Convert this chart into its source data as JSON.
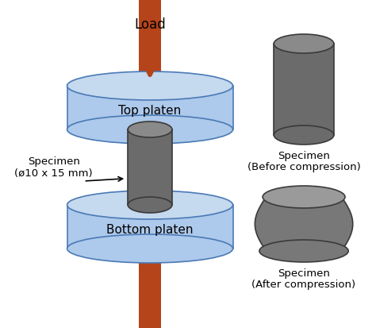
{
  "bg_color": "#ffffff",
  "load_bar_color": "#b5441a",
  "platen_body_color": "#adc9eb",
  "platen_edge_color": "#4a7ab5",
  "platen_top_color": "#c5d9ef",
  "specimen_body_color": "#6b6b6b",
  "specimen_top_color": "#8a8a8a",
  "specimen_edge_color": "#3a3a3a",
  "load_text": "Load",
  "top_platen_text": "Top platen",
  "bottom_platen_text": "Bottom platen",
  "specimen_label_line1": "Specimen",
  "specimen_label_line2": "(ø10 x 15 mm)",
  "before_text_line1": "Specimen",
  "before_text_line2": "(Before compression)",
  "after_text_line1": "Specimen",
  "after_text_line2": "(After compression)"
}
